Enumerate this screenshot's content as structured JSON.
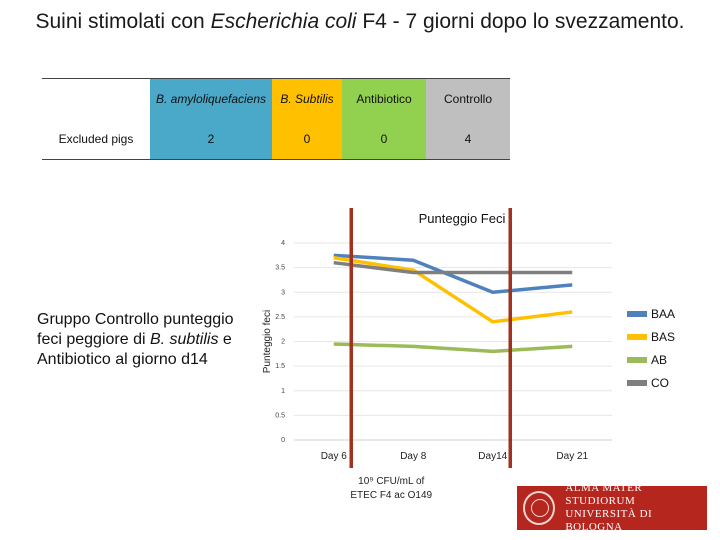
{
  "title": {
    "prefix": "Suini  stimolati con ",
    "italic": "Escherichia coli",
    "suffix": " F4  - 7 giorni dopo lo svezzamento."
  },
  "excluded_table": {
    "headers": [
      "",
      "B. amyloliquefaciens",
      "B. Subtilis",
      "Antibiotico",
      "Controllo"
    ],
    "row_label": "Excluded pigs",
    "values": [
      "2",
      "0",
      "0",
      "4"
    ]
  },
  "note": {
    "text1": "Gruppo Controllo punteggio feci peggiore di ",
    "italic": "B. subtilis",
    "text2": " e Antibiotico al giorno d14"
  },
  "chart_data": {
    "type": "line",
    "title": "Punteggio Feci",
    "ylabel": "Punteggio feci",
    "xlabel": "",
    "categories": [
      "Day 6",
      "Day 8",
      "Day14",
      "Day 21"
    ],
    "ylim": [
      0,
      4
    ],
    "yticks": [
      "0",
      "0.5",
      "1",
      "1.5",
      "2",
      "2.5",
      "3",
      "3.5",
      "4"
    ],
    "grid": true,
    "legend_position": "right",
    "series": [
      {
        "name": "BAA",
        "color": "#4f81bd",
        "values": [
          3.75,
          3.65,
          3.0,
          3.15
        ]
      },
      {
        "name": "BAS",
        "color": "#ffc000",
        "values": [
          3.7,
          3.45,
          2.4,
          2.6
        ]
      },
      {
        "name": "AB",
        "color": "#9bbb59",
        "values": [
          1.95,
          1.9,
          1.8,
          1.9
        ]
      },
      {
        "name": "CO",
        "color": "#7f7f7f",
        "values": [
          3.6,
          3.4,
          3.4,
          3.4
        ]
      }
    ],
    "marker_lines": {
      "color": "#a0321e",
      "at": [
        "Day 6",
        "Day14"
      ]
    },
    "annotation": {
      "line1": "10⁹ CFU/mL of",
      "line2": "ETEC F4 ac O149"
    }
  },
  "logo": {
    "line1": "ALMA MATER STUDIORUM",
    "line2": "UNIVERSITÀ DI BOLOGNA"
  }
}
